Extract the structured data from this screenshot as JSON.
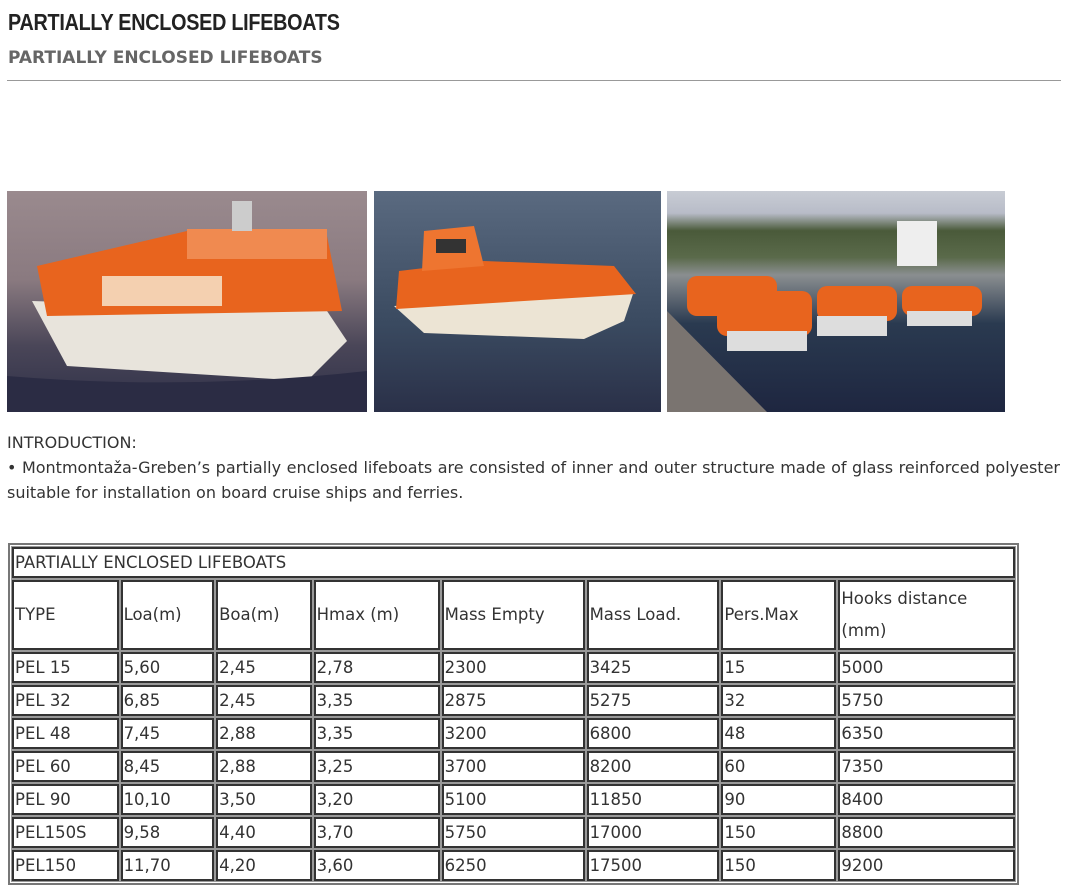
{
  "page_title": "PARTIALLY ENCLOSED LIFEBOATS",
  "subtitle": "PARTIALLY ENCLOSED LIFEBOATS",
  "intro": {
    "heading": "INTRODUCTION:",
    "text": "• Montmontaža-Greben’s partially enclosed lifeboats are consisted of inner and outer structure made of glass reinforced polyester suitable for installation on board cruise ships and ferries."
  },
  "table": {
    "caption": "PARTIALLY ENCLOSED LIFEBOATS",
    "headers": [
      "TYPE",
      "Loa(m)",
      "Boa(m)",
      "Hmax (m)",
      "Mass Empty",
      "Mass Load.",
      "Pers.Max",
      "Hooks distance (mm)"
    ],
    "rows": [
      [
        "PEL 15",
        "5,60",
        "2,45",
        "2,78",
        "2300",
        "3425",
        "15",
        "5000"
      ],
      [
        "PEL 32",
        "6,85",
        "2,45",
        "3,35",
        "2875",
        "5275",
        "32",
        "5750"
      ],
      [
        "PEL 48",
        "7,45",
        "2,88",
        "3,35",
        "3200",
        "6800",
        "48",
        "6350"
      ],
      [
        "PEL 60",
        "8,45",
        "2,88",
        "3,25",
        "3700",
        "8200",
        "60",
        "7350"
      ],
      [
        "PEL 90",
        "10,10",
        "3,50",
        "3,20",
        "5100",
        "11850",
        "90",
        "8400"
      ],
      [
        "PEL150S",
        "9,58",
        "4,40",
        "3,70",
        "5750",
        "17000",
        "150",
        "8800"
      ],
      [
        "PEL150",
        "11,70",
        "4,20",
        "3,60",
        "6250",
        "17500",
        "150",
        "9200"
      ]
    ]
  },
  "colors": {
    "boat_orange": "#e8641e",
    "hull_white": "#e8e4dc",
    "water": "#3a3f5a"
  }
}
